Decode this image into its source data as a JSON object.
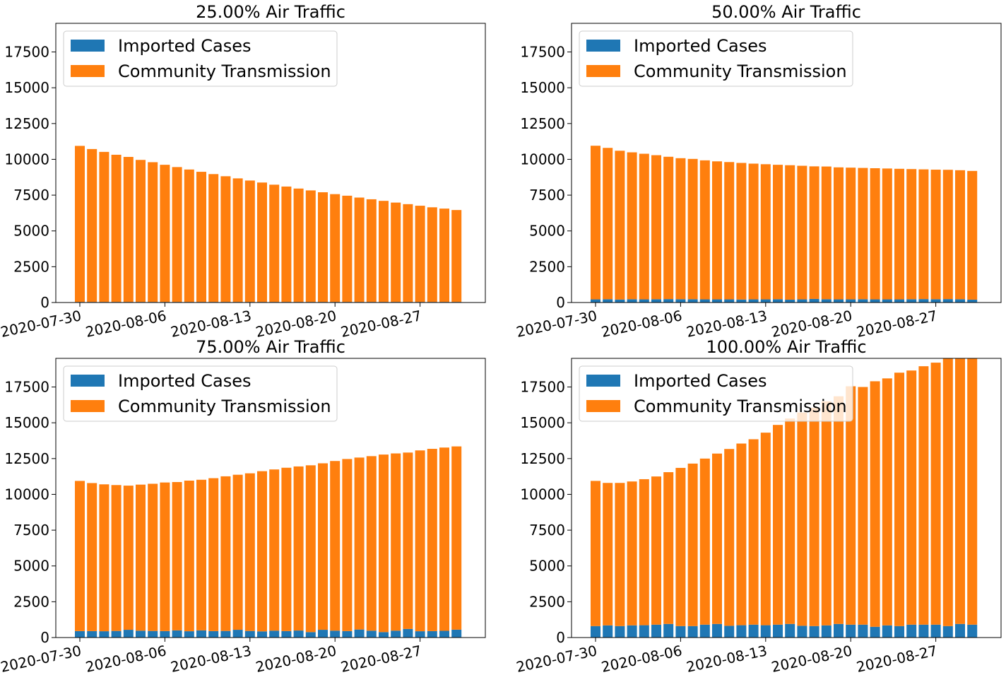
{
  "colors": {
    "imported": "#1f77b4",
    "community": "#ff7f0e"
  },
  "legend": {
    "imported_label": "Imported Cases",
    "community_label": "Community Transmission",
    "position": "upper-left"
  },
  "chart_data": [
    {
      "type": "bar",
      "stacked": true,
      "title": "25.00% Air Traffic",
      "ylim": [
        0,
        19500
      ],
      "yticks": [
        0,
        2500,
        5000,
        7500,
        10000,
        12500,
        15000,
        17500
      ],
      "xtick_labels": [
        "2020-07-30",
        "2020-08-06",
        "2020-08-13",
        "2020-08-20",
        "2020-08-27"
      ],
      "series": [
        {
          "name": "Imported Cases",
          "values": [
            40,
            40,
            40,
            40,
            40,
            40,
            40,
            40,
            40,
            40,
            40,
            40,
            40,
            40,
            40,
            40,
            40,
            40,
            40,
            40,
            40,
            40,
            40,
            40,
            40,
            40,
            40,
            40,
            40,
            40,
            40,
            40
          ]
        },
        {
          "name": "Community Transmission",
          "values": [
            10900,
            10680,
            10480,
            10280,
            10130,
            9920,
            9760,
            9580,
            9420,
            9250,
            9090,
            8930,
            8780,
            8630,
            8480,
            8340,
            8190,
            8060,
            7920,
            7790,
            7660,
            7530,
            7420,
            7290,
            7170,
            7060,
            6940,
            6830,
            6720,
            6610,
            6520,
            6420
          ]
        }
      ]
    },
    {
      "type": "bar",
      "stacked": true,
      "title": "50.00% Air Traffic",
      "ylim": [
        0,
        19500
      ],
      "yticks": [
        0,
        2500,
        5000,
        7500,
        10000,
        12500,
        15000,
        17500
      ],
      "xtick_labels": [
        "2020-07-30",
        "2020-08-06",
        "2020-08-13",
        "2020-08-20",
        "2020-08-27"
      ],
      "series": [
        {
          "name": "Imported Cases",
          "values": [
            220,
            230,
            210,
            230,
            220,
            230,
            240,
            230,
            230,
            220,
            220,
            220,
            210,
            220,
            220,
            230,
            200,
            220,
            250,
            230,
            220,
            220,
            230,
            220,
            220,
            220,
            230,
            240,
            230,
            240,
            230,
            200
          ]
        },
        {
          "name": "Community Transmission",
          "values": [
            10730,
            10570,
            10390,
            10260,
            10170,
            10060,
            9940,
            9850,
            9800,
            9710,
            9640,
            9590,
            9540,
            9480,
            9440,
            9390,
            9390,
            9330,
            9260,
            9270,
            9220,
            9200,
            9170,
            9160,
            9140,
            9120,
            9090,
            9060,
            9050,
            9030,
            9010,
            8990
          ]
        }
      ]
    },
    {
      "type": "bar",
      "stacked": true,
      "title": "75.00% Air Traffic",
      "ylim": [
        0,
        19500
      ],
      "yticks": [
        0,
        2500,
        5000,
        7500,
        10000,
        12500,
        15000,
        17500
      ],
      "xtick_labels": [
        "2020-07-30",
        "2020-08-06",
        "2020-08-13",
        "2020-08-20",
        "2020-08-27"
      ],
      "series": [
        {
          "name": "Imported Cases",
          "values": [
            450,
            450,
            440,
            460,
            540,
            480,
            460,
            450,
            500,
            440,
            500,
            450,
            460,
            540,
            460,
            430,
            480,
            450,
            490,
            380,
            540,
            480,
            450,
            560,
            480,
            380,
            480,
            600,
            440,
            450,
            470,
            550
          ]
        },
        {
          "name": "Community Transmission",
          "values": [
            10490,
            10340,
            10260,
            10190,
            10070,
            10200,
            10280,
            10380,
            10360,
            10520,
            10520,
            10680,
            10800,
            10830,
            11010,
            11190,
            11260,
            11410,
            11460,
            11650,
            11630,
            11850,
            12020,
            12010,
            12190,
            12400,
            12380,
            12320,
            12630,
            12730,
            12800,
            12800
          ]
        }
      ]
    },
    {
      "type": "bar",
      "stacked": true,
      "title": "100.00% Air Traffic",
      "ylim": [
        0,
        19500
      ],
      "yticks": [
        0,
        2500,
        5000,
        7500,
        10000,
        12500,
        15000,
        17500
      ],
      "xtick_labels": [
        "2020-07-30",
        "2020-08-06",
        "2020-08-13",
        "2020-08-20",
        "2020-08-27"
      ],
      "series": [
        {
          "name": "Imported Cases",
          "values": [
            800,
            850,
            800,
            850,
            860,
            900,
            950,
            800,
            800,
            900,
            950,
            820,
            860,
            900,
            860,
            900,
            950,
            820,
            800,
            850,
            950,
            900,
            900,
            750,
            850,
            800,
            900,
            900,
            900,
            800,
            950,
            900
          ]
        },
        {
          "name": "Community Transmission",
          "values": [
            10140,
            9950,
            10000,
            10050,
            10200,
            10350,
            10600,
            11050,
            11350,
            11600,
            11900,
            12350,
            12690,
            12950,
            13450,
            13950,
            14350,
            14900,
            15250,
            15650,
            15900,
            16650,
            16600,
            17150,
            17250,
            17700,
            17750,
            18050,
            18300,
            18700,
            18650,
            18700
          ]
        }
      ]
    }
  ]
}
